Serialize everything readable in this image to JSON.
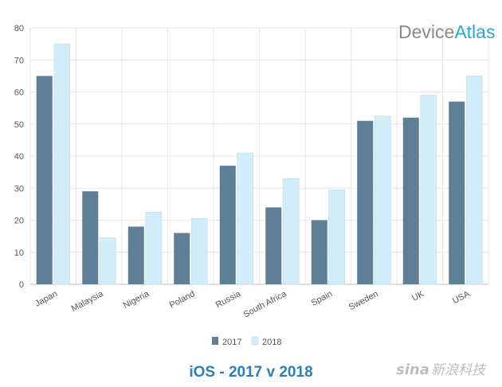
{
  "chart_data": {
    "type": "bar",
    "title": "iOS - 2017 v 2018",
    "xlabel": "",
    "ylabel": "",
    "categories": [
      "Japan",
      "Malaysia",
      "Nigeria",
      "Poland",
      "Russia",
      "South Africa",
      "Spain",
      "Sweden",
      "UK",
      "USA"
    ],
    "series": [
      {
        "name": "2017",
        "color": "#5f7f96",
        "values": [
          65,
          29,
          18,
          16,
          37,
          24,
          20,
          51,
          52,
          57
        ]
      },
      {
        "name": "2018",
        "color": "#d3ecfa",
        "values": [
          75,
          14.5,
          22.5,
          20.5,
          41,
          33,
          29.5,
          52.5,
          59,
          65
        ]
      }
    ],
    "ylim": [
      0,
      80
    ],
    "yticks": [
      0,
      10,
      20,
      30,
      40,
      50,
      60,
      70,
      80
    ],
    "grid": true,
    "legend_position": "bottom-center"
  },
  "branding": {
    "logo_part1": "Device",
    "logo_part2": "Atlas",
    "logo_color1": "#8a8a8a",
    "logo_color2": "#2aa9c6",
    "title_color": "#2b7fb3",
    "watermark_text": "新浪科技",
    "watermark_logo": "sina",
    "watermark_color": "#bdbdbd"
  }
}
